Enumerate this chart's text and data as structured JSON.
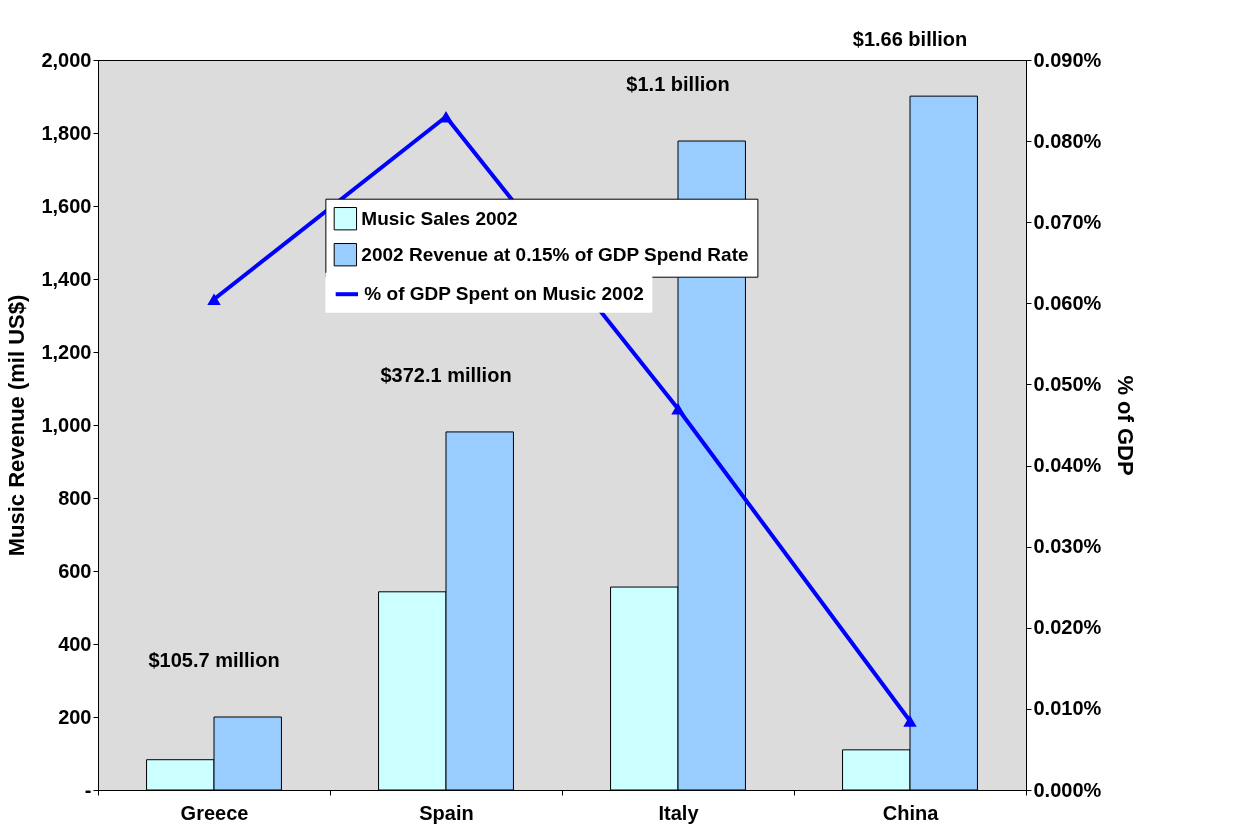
{
  "chart_data": {
    "type": "bar",
    "categories": [
      "Greece",
      "Spain",
      "Italy",
      "China"
    ],
    "ylabel": "Music Revenue (mil US$)",
    "y2label": "% of GDP",
    "ylim": [
      0,
      2000
    ],
    "yticks": [
      {
        "value": 0,
        "label": "-"
      },
      200,
      400,
      600,
      800,
      {
        "value": 1000,
        "label": "1,000"
      },
      {
        "value": 1200,
        "label": "1,200"
      },
      {
        "value": 1400,
        "label": "1,400"
      },
      {
        "value": 1600,
        "label": "1,600"
      },
      {
        "value": 1800,
        "label": "1,800"
      },
      {
        "value": 2000,
        "label": "2,000"
      }
    ],
    "y2lim": [
      0,
      0.09
    ],
    "y2ticks": [
      {
        "value": 0,
        "label": "0.000%"
      },
      {
        "value": 0.01,
        "label": "0.010%"
      },
      {
        "value": 0.02,
        "label": "0.020%"
      },
      {
        "value": 0.03,
        "label": "0.030%"
      },
      {
        "value": 0.04,
        "label": "0.040%"
      },
      {
        "value": 0.05,
        "label": "0.050%"
      },
      {
        "value": 0.06,
        "label": "0.060%"
      },
      {
        "value": 0.07,
        "label": "0.070%"
      },
      {
        "value": 0.08,
        "label": "0.080%"
      },
      {
        "value": 0.09,
        "label": "0.090%"
      }
    ],
    "series": [
      {
        "name": "Music Sales 2002",
        "color": "#ccffff",
        "values": [
          83,
          543,
          556,
          110
        ]
      },
      {
        "name": "2002 Revenue at 0.15% of GDP Spend Rate",
        "color": "#99ccff",
        "values": [
          200,
          981,
          1778,
          1901
        ]
      },
      {
        "name": "% of GDP Spent on Music 2002",
        "type": "line",
        "axis": "y2",
        "color": "#0000ff",
        "marker": "triangle",
        "values": [
          0.0605,
          0.083,
          0.047,
          0.0085
        ]
      }
    ],
    "annotations": [
      "$105.7 million",
      "$372.1 million",
      "$1.1 billion",
      "$1.66 billion"
    ],
    "legend": "top",
    "grid": false
  }
}
